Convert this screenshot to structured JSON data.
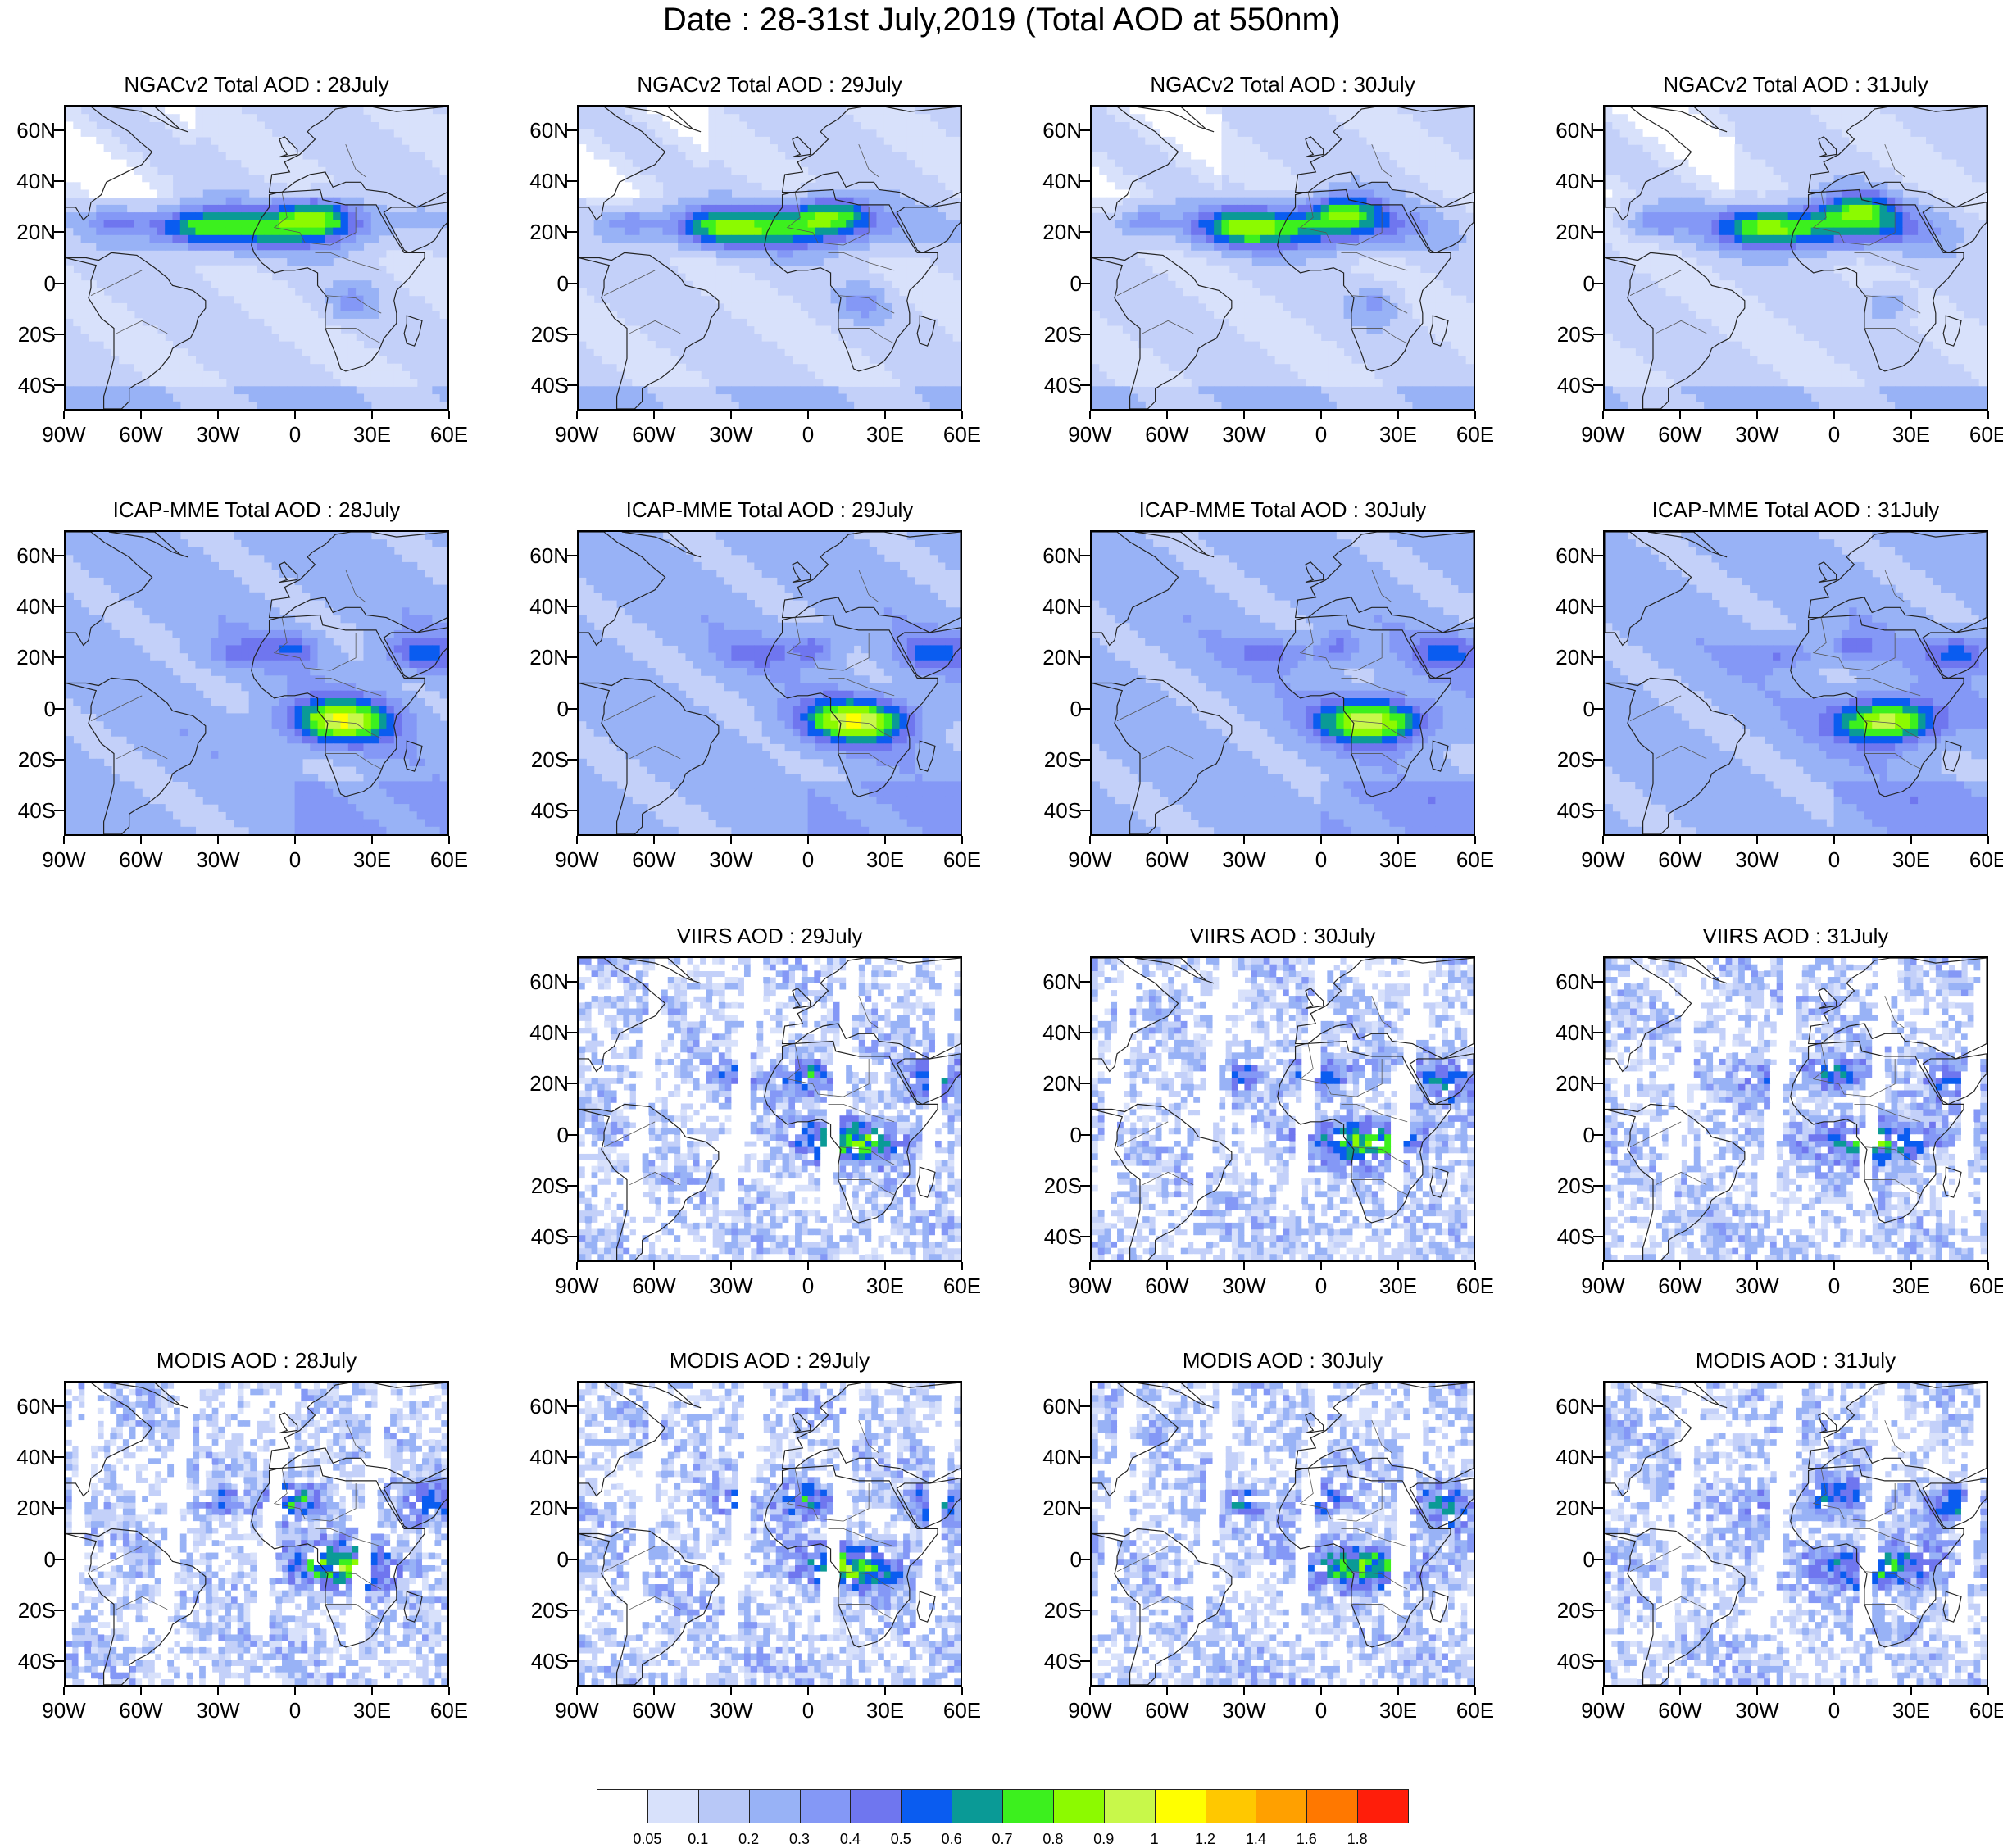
{
  "title": "Date : 28-31st July,2019 (Total AOD at 550nm)",
  "lat_ticks": [
    "60N",
    "40N",
    "20N",
    "0",
    "20S",
    "40S"
  ],
  "lon_ticks": [
    "90W",
    "60W",
    "30W",
    "0",
    "30E",
    "60E"
  ],
  "lat_values": [
    60,
    40,
    20,
    0,
    -20,
    -40
  ],
  "lon_values": [
    -90,
    -60,
    -30,
    0,
    30,
    60
  ],
  "map_extent": {
    "lon_min": -90,
    "lon_max": 60,
    "lat_min": -50,
    "lat_max": 70
  },
  "panels": [
    {
      "title": "NGACv2 Total AOD : 28July",
      "row": 0,
      "col": 0
    },
    {
      "title": "NGACv2 Total AOD : 29July",
      "row": 0,
      "col": 1
    },
    {
      "title": "NGACv2 Total AOD : 30July",
      "row": 0,
      "col": 2
    },
    {
      "title": "NGACv2 Total AOD : 31July",
      "row": 0,
      "col": 3
    },
    {
      "title": "ICAP-MME Total AOD : 28July",
      "row": 1,
      "col": 0
    },
    {
      "title": "ICAP-MME Total AOD : 29July",
      "row": 1,
      "col": 1
    },
    {
      "title": "ICAP-MME Total AOD : 30July",
      "row": 1,
      "col": 2
    },
    {
      "title": "ICAP-MME Total AOD : 31July",
      "row": 1,
      "col": 3
    },
    {
      "title": "VIIRS AOD : 29July",
      "row": 2,
      "col": 1
    },
    {
      "title": "VIIRS AOD : 30July",
      "row": 2,
      "col": 2
    },
    {
      "title": "VIIRS AOD : 31July",
      "row": 2,
      "col": 3
    },
    {
      "title": "MODIS AOD : 28July",
      "row": 3,
      "col": 0
    },
    {
      "title": "MODIS AOD : 29July",
      "row": 3,
      "col": 1
    },
    {
      "title": "MODIS AOD : 30July",
      "row": 3,
      "col": 2
    },
    {
      "title": "MODIS AOD : 31July",
      "row": 3,
      "col": 3
    }
  ],
  "colorbar": {
    "colors": [
      "#ffffff",
      "#d8e1fb",
      "#b8c8f7",
      "#98b2f6",
      "#8498f6",
      "#6f76ef",
      "#0a5cf0",
      "#0a9a96",
      "#3cf01e",
      "#8cfa00",
      "#c8f84a",
      "#ffff00",
      "#ffc800",
      "#ffa000",
      "#ff7800",
      "#ff1e0a"
    ],
    "labels": [
      "0.05",
      "0.1",
      "0.2",
      "0.3",
      "0.4",
      "0.5",
      "0.6",
      "0.7",
      "0.8",
      "0.9",
      "1",
      "1.2",
      "1.4",
      "1.6",
      "1.8"
    ]
  },
  "map_colors": {
    "background": "#c3d0f9",
    "land_outline": "#222222",
    "border": "#555555"
  }
}
